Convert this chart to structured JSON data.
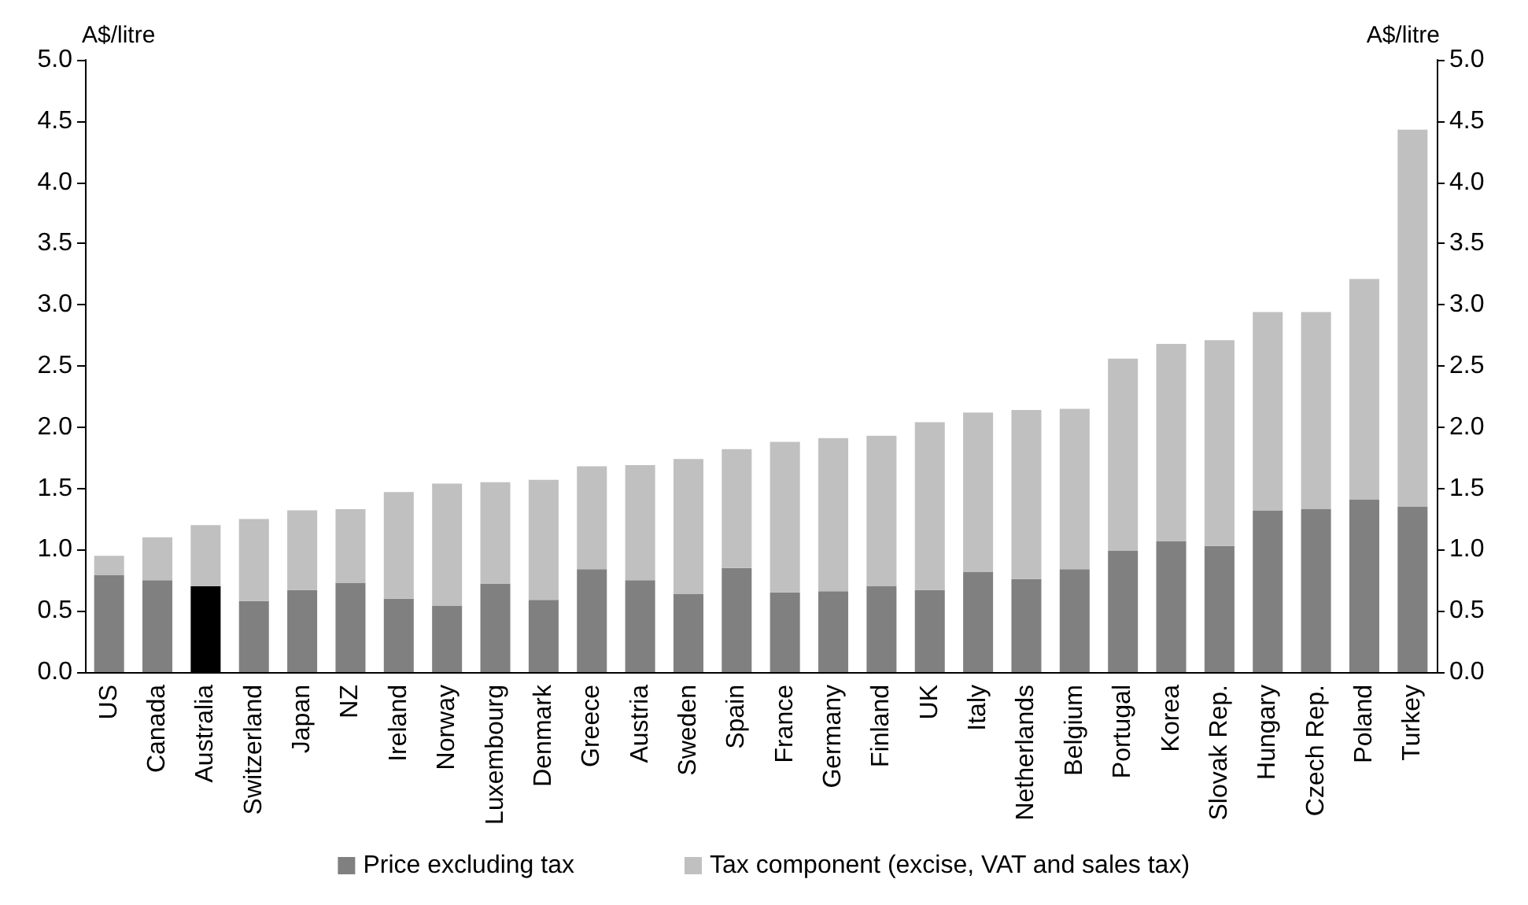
{
  "chart_data": {
    "type": "bar",
    "stacked": true,
    "ylabel": "A$/litre",
    "y2label": "A$/litre",
    "categories": [
      "US",
      "Canada",
      "Australia",
      "Switzerland",
      "Japan",
      "NZ",
      "Ireland",
      "Norway",
      "Luxembourg",
      "Denmark",
      "Greece",
      "Austria",
      "Sweden",
      "Spain",
      "France",
      "Germany",
      "Finland",
      "UK",
      "Italy",
      "Netherlands",
      "Belgium",
      "Portugal",
      "Korea",
      "Slovak Rep.",
      "Hungary",
      "Czech Rep.",
      "Poland",
      "Turkey"
    ],
    "series": [
      {
        "name": "Price excluding tax",
        "color": "#808080",
        "colors": [
          "#808080",
          "#808080",
          "#000000",
          "#808080",
          "#808080",
          "#808080",
          "#808080",
          "#808080",
          "#808080",
          "#808080",
          "#808080",
          "#808080",
          "#808080",
          "#808080",
          "#808080",
          "#808080",
          "#808080",
          "#808080",
          "#808080",
          "#808080",
          "#808080",
          "#808080",
          "#808080",
          "#808080",
          "#808080",
          "#808080",
          "#808080",
          "#808080"
        ],
        "values": [
          0.79,
          0.75,
          0.7,
          0.58,
          0.67,
          0.73,
          0.6,
          0.54,
          0.72,
          0.59,
          0.84,
          0.75,
          0.64,
          0.85,
          0.65,
          0.66,
          0.7,
          0.67,
          0.82,
          0.76,
          0.84,
          0.99,
          1.07,
          1.03,
          1.32,
          1.33,
          1.41,
          1.35
        ]
      },
      {
        "name": "Tax component (excise, VAT and sales tax)",
        "color": "#c0c0c0",
        "values": [
          0.16,
          0.35,
          0.5,
          0.67,
          0.65,
          0.6,
          0.87,
          1.0,
          0.83,
          0.98,
          0.84,
          0.94,
          1.1,
          0.97,
          1.23,
          1.25,
          1.23,
          1.37,
          1.3,
          1.38,
          1.31,
          1.57,
          1.61,
          1.68,
          1.62,
          1.61,
          1.8,
          3.08
        ]
      }
    ],
    "ylim": [
      0,
      5
    ],
    "yticks": [
      {
        "value": 0,
        "label": "0.0"
      },
      0.5,
      {
        "value": 1,
        "label": "1.0"
      },
      1.5,
      {
        "value": 2,
        "label": "2.0"
      },
      2.5,
      {
        "value": 3,
        "label": "3.0"
      },
      3.5,
      {
        "value": 4,
        "label": "4.0"
      },
      4.5,
      {
        "value": 5,
        "label": "5.0"
      }
    ],
    "y2lim": [
      0,
      5
    ],
    "y2ticks": [
      {
        "value": 0,
        "label": "0.0"
      },
      0.5,
      {
        "value": 1,
        "label": "1.0"
      },
      1.5,
      {
        "value": 2,
        "label": "2.0"
      },
      2.5,
      {
        "value": 3,
        "label": "3.0"
      },
      3.5,
      {
        "value": 4,
        "label": "4.0"
      },
      4.5,
      {
        "value": 5,
        "label": "5.0"
      }
    ],
    "grid": false,
    "legend": "bottom"
  }
}
